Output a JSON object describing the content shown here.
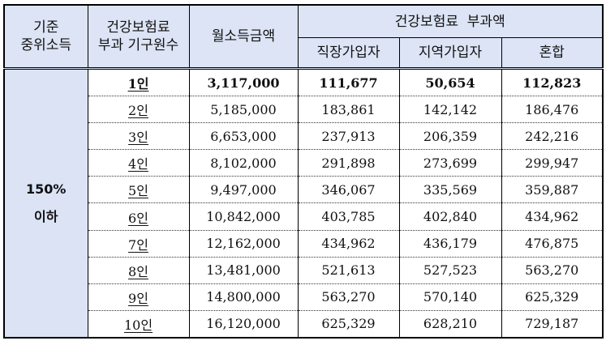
{
  "table": {
    "headers": {
      "baseline_income": "기준\n중위소득",
      "household_members_line1": "건강보험료",
      "household_members_line2": "부과 기구원수",
      "monthly_income": "월소득금액",
      "premium_group": "건강보험료  부과액",
      "employee": "직장가입자",
      "regional": "지역가입자",
      "mixed": "혼합"
    },
    "baseline_line1": "기준",
    "baseline_line2": "중위소득",
    "group_label_line1": "150%",
    "group_label_line2": "이하",
    "rows": [
      {
        "persons": "1인",
        "monthly_income": "3,117,000",
        "employee": "111,677",
        "regional": "50,654",
        "mixed": "112,823"
      },
      {
        "persons": "2인",
        "monthly_income": "5,185,000",
        "employee": "183,861",
        "regional": "142,142",
        "mixed": "186,476"
      },
      {
        "persons": "3인",
        "monthly_income": "6,653,000",
        "employee": "237,913",
        "regional": "206,359",
        "mixed": "242,216"
      },
      {
        "persons": "4인",
        "monthly_income": "8,102,000",
        "employee": "291,898",
        "regional": "273,699",
        "mixed": "299,947"
      },
      {
        "persons": "5인",
        "monthly_income": "9,497,000",
        "employee": "346,067",
        "regional": "335,569",
        "mixed": "359,887"
      },
      {
        "persons": "6인",
        "monthly_income": "10,842,000",
        "employee": "403,785",
        "regional": "402,840",
        "mixed": "434,962"
      },
      {
        "persons": "7인",
        "monthly_income": "12,162,000",
        "employee": "434,962",
        "regional": "436,179",
        "mixed": "476,875"
      },
      {
        "persons": "8인",
        "monthly_income": "13,481,000",
        "employee": "521,613",
        "regional": "527,523",
        "mixed": "563,270"
      },
      {
        "persons": "9인",
        "monthly_income": "14,800,000",
        "employee": "563,270",
        "regional": "570,140",
        "mixed": "625,329"
      },
      {
        "persons": "10인",
        "monthly_income": "16,120,000",
        "employee": "625,329",
        "regional": "628,210",
        "mixed": "729,187"
      }
    ]
  },
  "colors": {
    "header_bg": "#dce4f5",
    "group_bg": "#dbe3f4",
    "border": "#000000"
  }
}
